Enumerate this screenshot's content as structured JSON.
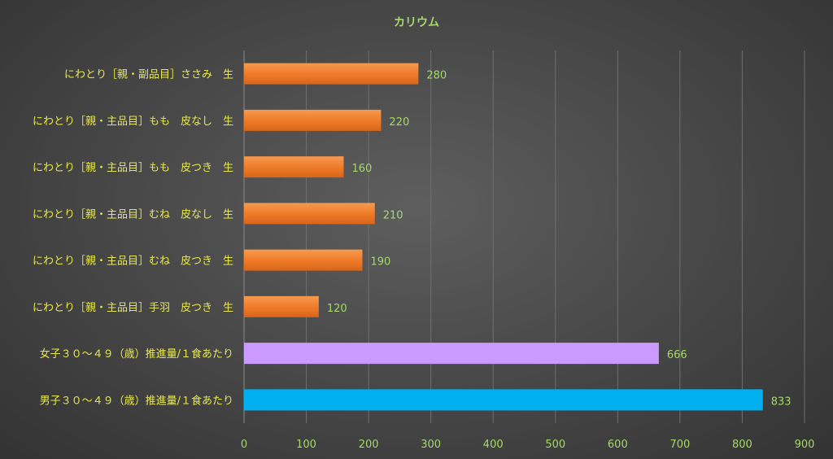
{
  "chart_data": {
    "type": "bar",
    "orientation": "horizontal",
    "title": "カリウム",
    "xlabel": "",
    "ylabel": "",
    "xlim": [
      0,
      900
    ],
    "xticks": [
      0,
      100,
      200,
      300,
      400,
      500,
      600,
      700,
      800,
      900
    ],
    "grid": true,
    "legend": "none",
    "categories": [
      "にわとり［親・副品目］ささみ　生",
      "にわとり［親・主品目］もも　皮なし　生",
      "にわとり［親・主品目］もも　皮つき　生",
      "にわとり［親・主品目］むね　皮なし　生",
      "にわとり［親・主品目］むね　皮つき　生",
      "にわとり［親・主品目］手羽　皮つき　生",
      "女子３０～４９（歳）推進量/１食あたり",
      "男子３０～４９（歳）推進量/１食あたり"
    ],
    "values": [
      280,
      220,
      160,
      210,
      190,
      120,
      666,
      833
    ],
    "colors": [
      "#f07c2a",
      "#f07c2a",
      "#f07c2a",
      "#f07c2a",
      "#f07c2a",
      "#f07c2a",
      "#cc99ff",
      "#00b0f0"
    ]
  }
}
